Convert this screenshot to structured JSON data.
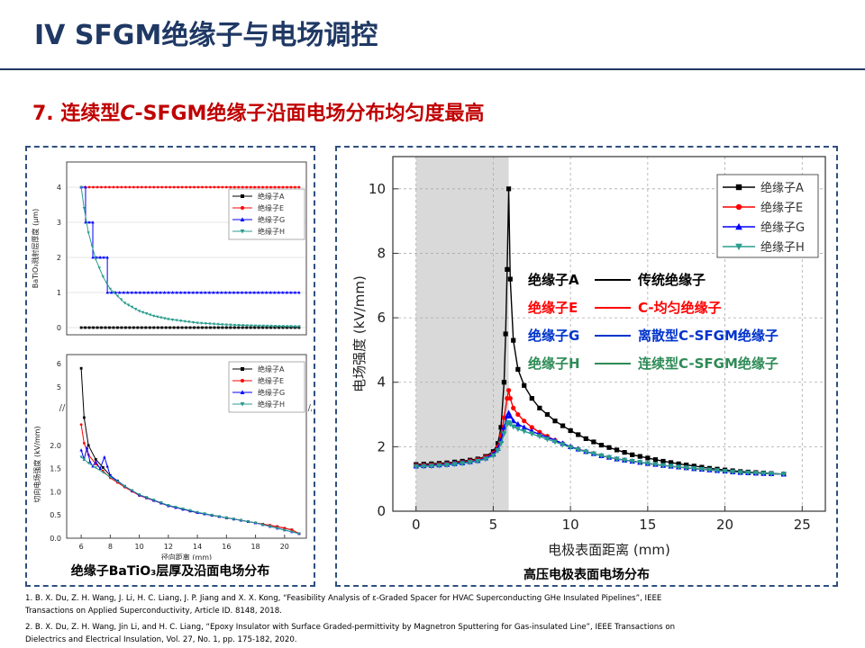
{
  "slide": {
    "title": "IV SFGM绝缘子与电场调控",
    "subtitle_prefix": "7. 连续型",
    "subtitle_c": "C",
    "subtitle_suffix": "-SFGM绝缘子沿面电场分布均匀度最高"
  },
  "left_caption": "绝缘子BaTiO₃层厚及沿面电场分布",
  "right_caption": "高压电极表面电场分布",
  "references": [
    "1. B. X. Du, Z. H. Wang, J. Li, H. C. Liang, J. P. Jiang and X. X. Kong, “Feasibility Analysis of ε-Graded Spacer for HVAC Superconducting GHe Insulated Pipelines”, IEEE",
    "Transactions on Applied Superconductivity, Article ID. 8148, 2018.",
    "2. B. X. Du, Z. H. Wang, Jin Li, and H. C. Liang, “Epoxy Insulator with Surface Graded-permittivity by Magnetron Sputtering for Gas-insulated Line”, IEEE Transactions on",
    "Dielectrics and Electrical Insulation,  Vol. 27, No. 1, pp. 175-182, 2020."
  ],
  "annotations": [
    {
      "left": "绝缘子A",
      "right": "传统绝缘子",
      "color": "#000000"
    },
    {
      "left": "绝缘子E",
      "right": "C-均匀绝缘子",
      "color": "#ff0000"
    },
    {
      "left": "绝缘子G",
      "right": "离散型C-SFGM绝缘子",
      "color": "#0033cc"
    },
    {
      "left": "绝缘子H",
      "right": "连续型C-SFGM绝缘子",
      "color": "#2e8b57"
    }
  ],
  "colors": {
    "A": "#000000",
    "E": "#ff0000",
    "G": "#0000ff",
    "H": "#2a9d8f",
    "shade": "#d9d9d9",
    "frame": "#2f4f7f"
  },
  "chart_data": [
    {
      "type": "line",
      "id": "left-top",
      "ylabel": "BaTiO₃溅射层厚度 (μm)",
      "xlim": [
        5,
        21.5
      ],
      "ylim": [
        0,
        4
      ],
      "yticks": [
        0,
        1,
        2,
        3,
        4
      ],
      "legend": [
        "绝缘子A",
        "绝缘子E",
        "绝缘子G",
        "绝缘子H"
      ],
      "legend_position": "top-right",
      "series": [
        {
          "name": "绝缘子A",
          "x": [
            6,
            21
          ],
          "values": [
            0,
            0
          ]
        },
        {
          "name": "绝缘子E",
          "x": [
            6,
            21
          ],
          "values": [
            4,
            4
          ]
        },
        {
          "name": "绝缘子G",
          "x": [
            6.0,
            6.3,
            6.3,
            6.8,
            6.8,
            7.3,
            7.3,
            7.8,
            7.8,
            21
          ],
          "values": [
            4,
            4,
            3,
            3,
            2,
            2,
            2,
            2,
            1,
            1
          ]
        },
        {
          "name": "绝缘子H",
          "x": [
            6.0,
            6.2,
            6.5,
            7.0,
            7.5,
            8.0,
            9.0,
            10.0,
            11.0,
            12.0,
            14.0,
            16.0,
            18.0,
            21.0
          ],
          "values": [
            4.0,
            3.4,
            2.7,
            1.95,
            1.45,
            1.1,
            0.7,
            0.47,
            0.33,
            0.24,
            0.13,
            0.08,
            0.05,
            0.03
          ]
        }
      ]
    },
    {
      "type": "line",
      "id": "left-bottom",
      "xlabel": "径向距离 (mm)",
      "ylabel": "切向电场强度 (kV/mm)",
      "xlim": [
        5,
        21.5
      ],
      "xticks": [
        6,
        8,
        10,
        12,
        14,
        16,
        18,
        20
      ],
      "yticks_lower": [
        0.0,
        0.5,
        1.0,
        1.5,
        2.0
      ],
      "yticks_upper": [
        5,
        6
      ],
      "legend": [
        "绝缘子A",
        "绝缘子E",
        "绝缘子G",
        "绝缘子H"
      ],
      "legend_position": "top-right",
      "series": [
        {
          "name": "绝缘子A",
          "x": [
            6.0,
            6.2,
            6.5,
            7.0,
            8.0,
            9.0,
            10.0,
            12.0,
            14.0,
            16.0,
            18.0,
            19.5,
            20.5,
            21.0
          ],
          "values": [
            5.8,
            2.6,
            2.0,
            1.7,
            1.35,
            1.12,
            0.93,
            0.7,
            0.55,
            0.44,
            0.33,
            0.25,
            0.18,
            0.1
          ]
        },
        {
          "name": "绝缘子E",
          "x": [
            6.0,
            6.2,
            6.5,
            7.0,
            8.0,
            9.0,
            10.0,
            12.0,
            14.0,
            16.0,
            18.0,
            19.5,
            20.5,
            21.0
          ],
          "values": [
            2.45,
            2.05,
            1.8,
            1.6,
            1.3,
            1.1,
            0.92,
            0.7,
            0.55,
            0.44,
            0.33,
            0.25,
            0.18,
            0.1
          ]
        },
        {
          "name": "绝缘子G",
          "x": [
            6.0,
            6.2,
            6.4,
            6.6,
            6.8,
            7.0,
            7.3,
            7.6,
            7.8,
            8.0,
            9.0,
            10.0,
            12.0,
            14.0,
            16.0,
            18.0,
            21.0
          ],
          "values": [
            1.9,
            1.7,
            1.95,
            1.65,
            1.55,
            1.65,
            1.5,
            1.75,
            1.55,
            1.35,
            1.12,
            0.93,
            0.7,
            0.55,
            0.44,
            0.33,
            0.1
          ]
        },
        {
          "name": "绝缘子H",
          "x": [
            6.0,
            6.2,
            6.5,
            7.0,
            8.0,
            9.0,
            10.0,
            12.0,
            14.0,
            16.0,
            18.0,
            21.0
          ],
          "values": [
            1.75,
            1.7,
            1.62,
            1.52,
            1.32,
            1.12,
            0.94,
            0.71,
            0.56,
            0.44,
            0.33,
            0.1
          ]
        }
      ]
    },
    {
      "type": "line",
      "id": "right-main",
      "xlabel": "电极表面距离 (mm)",
      "ylabel": "电场强度 (kV/mm)",
      "xlim": [
        -1.5,
        26.5
      ],
      "ylim": [
        0,
        11
      ],
      "xticks": [
        0,
        5,
        10,
        15,
        20,
        25
      ],
      "yticks": [
        0,
        2,
        4,
        6,
        8,
        10
      ],
      "shaded_x": [
        0,
        6
      ],
      "grid": true,
      "legend": [
        "绝缘子A",
        "绝缘子E",
        "绝缘子G",
        "绝缘子H"
      ],
      "legend_position": "top-right",
      "series": [
        {
          "name": "绝缘子A",
          "x": [
            0,
            1,
            2,
            3,
            4,
            4.5,
            5,
            5.3,
            5.5,
            5.7,
            5.8,
            5.9,
            6.0,
            6.1,
            6.3,
            6.6,
            7,
            7.5,
            8,
            9,
            10,
            11,
            12,
            13,
            14,
            15,
            16,
            17,
            18,
            19,
            20,
            21,
            22,
            23,
            23.8
          ],
          "values": [
            1.45,
            1.47,
            1.5,
            1.55,
            1.62,
            1.7,
            1.85,
            2.1,
            2.6,
            4.0,
            5.5,
            7.5,
            10.0,
            7.2,
            5.3,
            4.4,
            3.9,
            3.5,
            3.2,
            2.8,
            2.5,
            2.25,
            2.05,
            1.9,
            1.75,
            1.65,
            1.55,
            1.47,
            1.4,
            1.33,
            1.28,
            1.23,
            1.2,
            1.17,
            1.15
          ]
        },
        {
          "name": "绝缘子E",
          "x": [
            0,
            1,
            2,
            3,
            4,
            4.5,
            5,
            5.3,
            5.5,
            5.7,
            5.9,
            6.0,
            6.1,
            6.3,
            6.6,
            7,
            7.5,
            8,
            9,
            10,
            11,
            12,
            13,
            14,
            15,
            16,
            17,
            18,
            19,
            20,
            21,
            22,
            23,
            23.8
          ],
          "values": [
            1.42,
            1.44,
            1.47,
            1.52,
            1.6,
            1.68,
            1.8,
            2.0,
            2.35,
            2.9,
            3.5,
            3.75,
            3.5,
            3.2,
            3.0,
            2.8,
            2.6,
            2.45,
            2.2,
            2.0,
            1.85,
            1.72,
            1.62,
            1.55,
            1.48,
            1.42,
            1.37,
            1.32,
            1.28,
            1.24,
            1.2,
            1.18,
            1.16,
            1.15
          ]
        },
        {
          "name": "绝缘子G",
          "x": [
            0,
            1,
            2,
            3,
            4,
            4.5,
            5,
            5.3,
            5.5,
            5.7,
            5.9,
            6.0,
            6.1,
            6.3,
            6.6,
            7,
            7.5,
            8,
            9,
            10,
            11,
            12,
            13,
            14,
            15,
            16,
            17,
            18,
            19,
            20,
            21,
            22,
            23,
            23.8
          ],
          "values": [
            1.4,
            1.42,
            1.45,
            1.5,
            1.57,
            1.65,
            1.77,
            1.95,
            2.2,
            2.6,
            2.95,
            3.05,
            2.95,
            2.8,
            2.7,
            2.6,
            2.48,
            2.38,
            2.2,
            2.0,
            1.85,
            1.72,
            1.62,
            1.55,
            1.48,
            1.42,
            1.37,
            1.32,
            1.28,
            1.24,
            1.2,
            1.18,
            1.16,
            1.15
          ]
        },
        {
          "name": "绝缘子H",
          "x": [
            0,
            1,
            2,
            3,
            4,
            4.5,
            5,
            5.3,
            5.5,
            5.7,
            5.9,
            6.0,
            6.1,
            6.3,
            6.6,
            7,
            7.5,
            8,
            9,
            10,
            11,
            12,
            13,
            14,
            15,
            16,
            17,
            18,
            19,
            20,
            21,
            22,
            23,
            23.8
          ],
          "values": [
            1.38,
            1.4,
            1.43,
            1.48,
            1.55,
            1.62,
            1.72,
            1.88,
            2.1,
            2.4,
            2.7,
            2.75,
            2.7,
            2.62,
            2.55,
            2.48,
            2.4,
            2.32,
            2.15,
            1.98,
            1.84,
            1.72,
            1.62,
            1.55,
            1.48,
            1.42,
            1.37,
            1.32,
            1.28,
            1.24,
            1.2,
            1.18,
            1.16,
            1.15
          ]
        }
      ]
    }
  ]
}
